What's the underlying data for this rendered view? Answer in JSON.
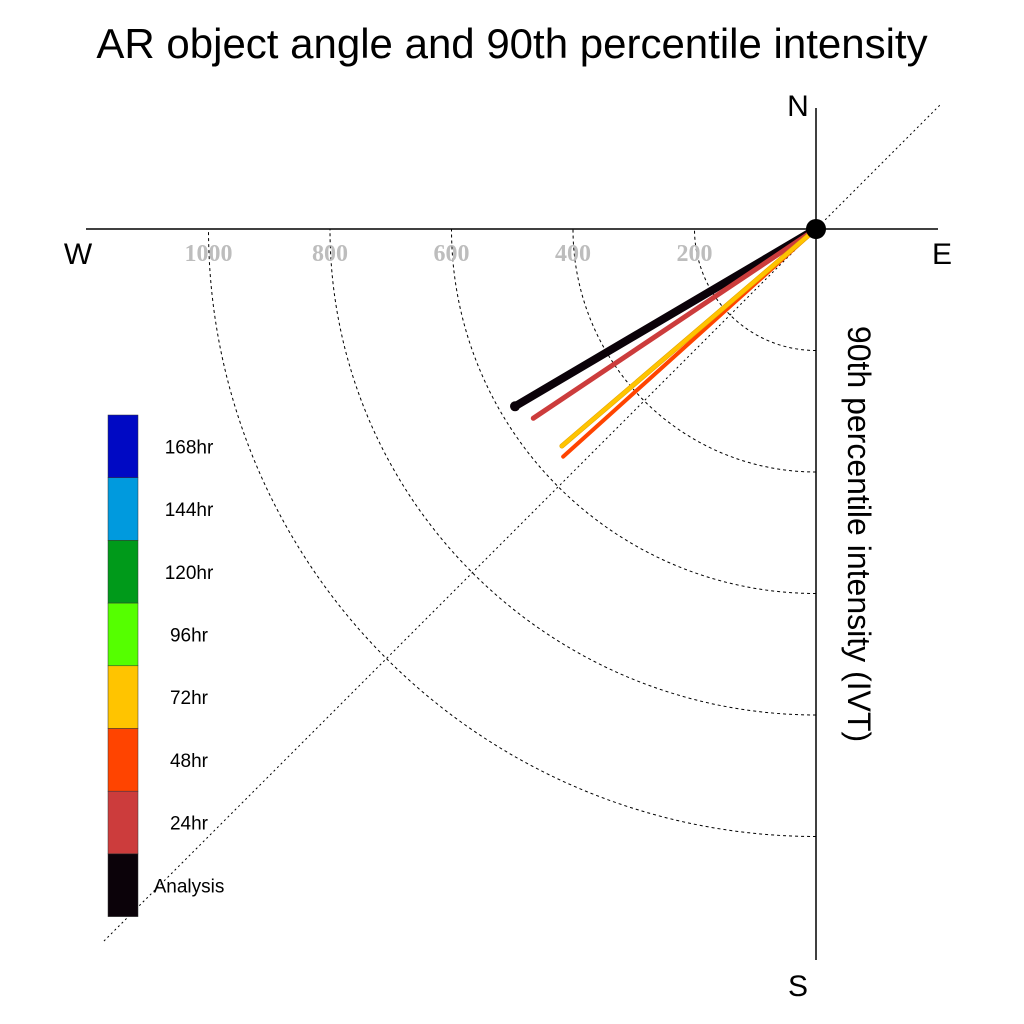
{
  "chart_data": {
    "type": "polar-quadrant",
    "title": "AR object angle and 90th percentile intensity",
    "compass": {
      "north": "N",
      "south": "S",
      "east": "E",
      "west": "W"
    },
    "radial_label": "90th percentile intensity (IVT)",
    "radial_ticks": [
      200,
      400,
      600,
      800,
      1000
    ],
    "radial_tick_labels": [
      "200",
      "400",
      "600",
      "800",
      "1000"
    ],
    "radial_max": 1200,
    "colors": {
      "Analysis": "#0b0209",
      "24hr": "#cc3c3c",
      "48hr": "#ff4400",
      "72hr": "#ffc400",
      "96hr": "#55ff00",
      "120hr": "#009a1a",
      "144hr": "#009ade",
      "168hr": "#0009c4"
    },
    "series": [
      {
        "name": "Analysis",
        "angle_deg": 225,
        "theta_deg": 149.5,
        "intensity": 575,
        "color": "#0b0209"
      },
      {
        "name": "24hr",
        "angle_deg": 225,
        "theta_deg": 146.2,
        "intensity": 560,
        "color": "#cc3c3c"
      },
      {
        "name": "48hr",
        "angle_deg": 225,
        "theta_deg": 138,
        "intensity": 560,
        "color": "#ff4400"
      },
      {
        "name": "72hr",
        "angle_deg": 225,
        "theta_deg": 139.5,
        "intensity": 550,
        "color": "#ffc400"
      }
    ],
    "legend": {
      "entries": [
        "168hr",
        "144hr",
        "120hr",
        "96hr",
        "72hr",
        "48hr",
        "24hr",
        "Analysis"
      ],
      "placement": "left"
    },
    "grid": true
  }
}
